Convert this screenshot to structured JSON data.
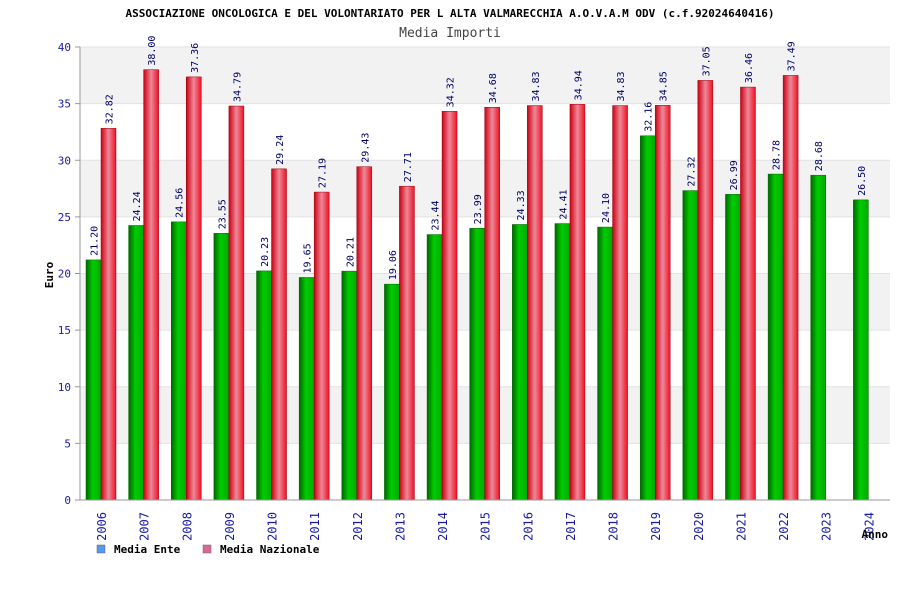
{
  "chart_data": {
    "type": "bar",
    "title": "ASSOCIAZIONE ONCOLOGICA E DEL VOLONTARIATO PER L ALTA VALMARECCHIA A.O.V.A.M ODV (c.f.92024640416)",
    "subtitle": "Media Importi",
    "xlabel": "Anno",
    "ylabel": "Euro",
    "ylim": [
      0,
      40
    ],
    "yticks": [
      "0",
      "5",
      "10",
      "15",
      "20",
      "25",
      "30",
      "35",
      "40"
    ],
    "categories": [
      "2006",
      "2007",
      "2008",
      "2009",
      "2010",
      "2011",
      "2012",
      "2013",
      "2014",
      "2015",
      "2016",
      "2017",
      "2018",
      "2019",
      "2020",
      "2021",
      "2022",
      "2023",
      "2024"
    ],
    "series": [
      {
        "name": "Media Ente",
        "color": "#00aa00",
        "legend_color": "#5599ee",
        "values": [
          21.2,
          24.24,
          24.56,
          23.55,
          20.23,
          19.65,
          20.21,
          19.06,
          23.44,
          23.99,
          24.33,
          24.41,
          24.1,
          32.16,
          27.32,
          26.99,
          28.78,
          28.68,
          26.5
        ],
        "labels": [
          "21.20",
          "24.24",
          "24.56",
          "23.55",
          "20.23",
          "19.65",
          "20.21",
          "19.06",
          "23.44",
          "23.99",
          "24.33",
          "24.41",
          "24.10",
          "32.16",
          "27.32",
          "26.99",
          "28.78",
          "28.68",
          "26.50"
        ]
      },
      {
        "name": "Media Nazionale",
        "color": "#ee1122",
        "legend_color": "#dd6699",
        "values": [
          32.82,
          38.0,
          37.36,
          34.79,
          29.24,
          27.19,
          29.43,
          27.71,
          34.32,
          34.68,
          34.83,
          34.94,
          34.83,
          34.85,
          37.05,
          36.46,
          37.49,
          null,
          null
        ],
        "labels": [
          "32.82",
          "38.00",
          "37.36",
          "34.79",
          "29.24",
          "27.19",
          "29.43",
          "27.71",
          "34.32",
          "34.68",
          "34.83",
          "34.94",
          "34.83",
          "34.85",
          "37.05",
          "36.46",
          "37.49",
          null,
          null
        ]
      }
    ],
    "grid": true,
    "legend_position": "bottom-left"
  }
}
